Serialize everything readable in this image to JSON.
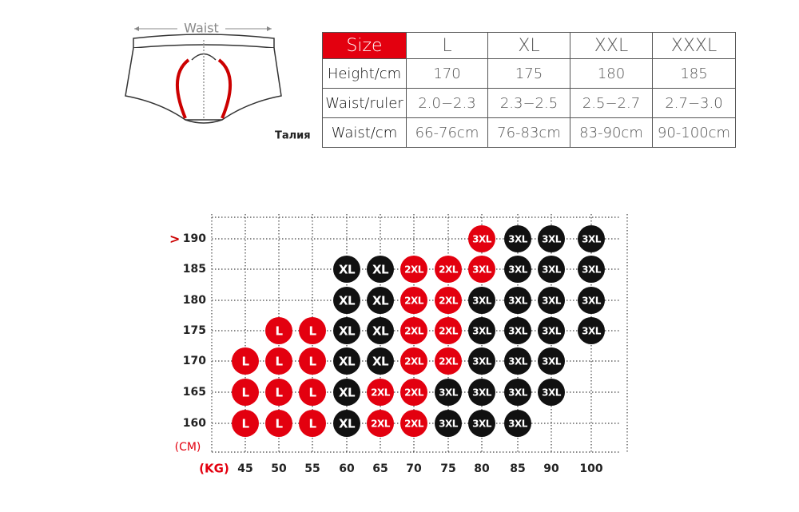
{
  "header": {
    "waist_label": "Waist",
    "side_label": "Талия"
  },
  "table": {
    "header": [
      "Size",
      "L",
      "XL",
      "XXL",
      "XXXL"
    ],
    "rows": [
      [
        "Height/cm",
        "170",
        "175",
        "180",
        "185"
      ],
      [
        "Waist/ruler",
        "2.0−2.3",
        "2.3−2.5",
        "2.5−2.7",
        "2.7−3.0"
      ],
      [
        "Waist/cm",
        "66-76cm",
        "76-83cm",
        "83-90cm",
        "90-100cm"
      ]
    ]
  },
  "grid": {
    "marker": ">",
    "y_unit": "(CM)",
    "x_unit": "(KG)",
    "heights": [
      190,
      185,
      180,
      175,
      170,
      165,
      160
    ],
    "weights": [
      45,
      50,
      55,
      60,
      65,
      70,
      75,
      80,
      85,
      90,
      100
    ],
    "rows": [
      [
        null,
        null,
        null,
        null,
        null,
        null,
        null,
        {
          "size": "3XL",
          "color": "#e3000f"
        },
        {
          "size": "3XL",
          "color": "#111111"
        },
        {
          "size": "3XL",
          "color": "#111111"
        },
        {
          "size": "3XL",
          "color": "#111111"
        }
      ],
      [
        null,
        null,
        null,
        {
          "size": "XL",
          "color": "#111111"
        },
        {
          "size": "XL",
          "color": "#111111"
        },
        {
          "size": "2XL",
          "color": "#e3000f"
        },
        {
          "size": "2XL",
          "color": "#e3000f"
        },
        {
          "size": "3XL",
          "color": "#e3000f"
        },
        {
          "size": "3XL",
          "color": "#111111"
        },
        {
          "size": "3XL",
          "color": "#111111"
        },
        {
          "size": "3XL",
          "color": "#111111"
        }
      ],
      [
        null,
        null,
        null,
        {
          "size": "XL",
          "color": "#111111"
        },
        {
          "size": "XL",
          "color": "#111111"
        },
        {
          "size": "2XL",
          "color": "#e3000f"
        },
        {
          "size": "2XL",
          "color": "#e3000f"
        },
        {
          "size": "3XL",
          "color": "#111111"
        },
        {
          "size": "3XL",
          "color": "#111111"
        },
        {
          "size": "3XL",
          "color": "#111111"
        },
        {
          "size": "3XL",
          "color": "#111111"
        }
      ],
      [
        null,
        {
          "size": "L",
          "color": "#e3000f"
        },
        {
          "size": "L",
          "color": "#e3000f"
        },
        {
          "size": "XL",
          "color": "#111111"
        },
        {
          "size": "XL",
          "color": "#111111"
        },
        {
          "size": "2XL",
          "color": "#e3000f"
        },
        {
          "size": "2XL",
          "color": "#e3000f"
        },
        {
          "size": "3XL",
          "color": "#111111"
        },
        {
          "size": "3XL",
          "color": "#111111"
        },
        {
          "size": "3XL",
          "color": "#111111"
        },
        {
          "size": "3XL",
          "color": "#111111"
        }
      ],
      [
        {
          "size": "L",
          "color": "#e3000f"
        },
        {
          "size": "L",
          "color": "#e3000f"
        },
        {
          "size": "L",
          "color": "#e3000f"
        },
        {
          "size": "XL",
          "color": "#111111"
        },
        {
          "size": "XL",
          "color": "#111111"
        },
        {
          "size": "2XL",
          "color": "#e3000f"
        },
        {
          "size": "2XL",
          "color": "#e3000f"
        },
        {
          "size": "3XL",
          "color": "#111111"
        },
        {
          "size": "3XL",
          "color": "#111111"
        },
        {
          "size": "3XL",
          "color": "#111111"
        },
        null
      ],
      [
        {
          "size": "L",
          "color": "#e3000f"
        },
        {
          "size": "L",
          "color": "#e3000f"
        },
        {
          "size": "L",
          "color": "#e3000f"
        },
        {
          "size": "XL",
          "color": "#111111"
        },
        {
          "size": "2XL",
          "color": "#e3000f"
        },
        {
          "size": "2XL",
          "color": "#e3000f"
        },
        {
          "size": "3XL",
          "color": "#111111"
        },
        {
          "size": "3XL",
          "color": "#111111"
        },
        {
          "size": "3XL",
          "color": "#111111"
        },
        {
          "size": "3XL",
          "color": "#111111"
        },
        null
      ],
      [
        {
          "size": "L",
          "color": "#e3000f"
        },
        {
          "size": "L",
          "color": "#e3000f"
        },
        {
          "size": "L",
          "color": "#e3000f"
        },
        {
          "size": "XL",
          "color": "#111111"
        },
        {
          "size": "2XL",
          "color": "#e3000f"
        },
        {
          "size": "2XL",
          "color": "#e3000f"
        },
        {
          "size": "3XL",
          "color": "#111111"
        },
        {
          "size": "3XL",
          "color": "#111111"
        },
        {
          "size": "3XL",
          "color": "#111111"
        },
        null,
        null
      ]
    ]
  }
}
